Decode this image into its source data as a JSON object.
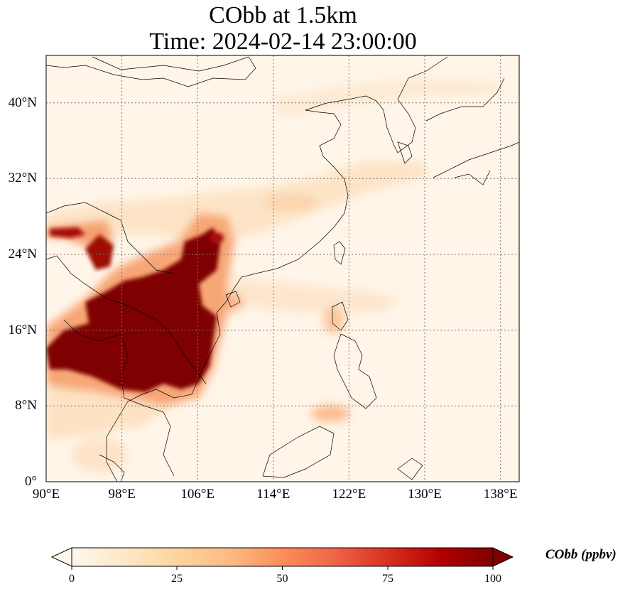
{
  "title": {
    "line1": "CObb at 1.5km",
    "line2": "Time: 2024-02-14 23:00:00"
  },
  "map": {
    "lon_range": [
      90,
      140
    ],
    "lat_range": [
      0,
      45
    ],
    "gridlines": true,
    "lon_ticks": [
      "90°E",
      "98°E",
      "106°E",
      "114°E",
      "122°E",
      "130°E",
      "138°E"
    ],
    "lat_ticks": [
      "0°",
      "8°N",
      "16°N",
      "24°N",
      "32°N",
      "40°N"
    ],
    "colormap": "OrRd",
    "field": "CObb"
  },
  "colorbar": {
    "label": "CObb (ppbv)",
    "ticks": [
      "0",
      "25",
      "50",
      "75",
      "100"
    ],
    "range": [
      0,
      100
    ],
    "extend": "both",
    "colors": [
      "#fff7ec",
      "#fee8c8",
      "#fdd49e",
      "#fdbb84",
      "#fc8d59",
      "#ef6548",
      "#d7301f",
      "#b30000",
      "#7f0000"
    ]
  }
}
